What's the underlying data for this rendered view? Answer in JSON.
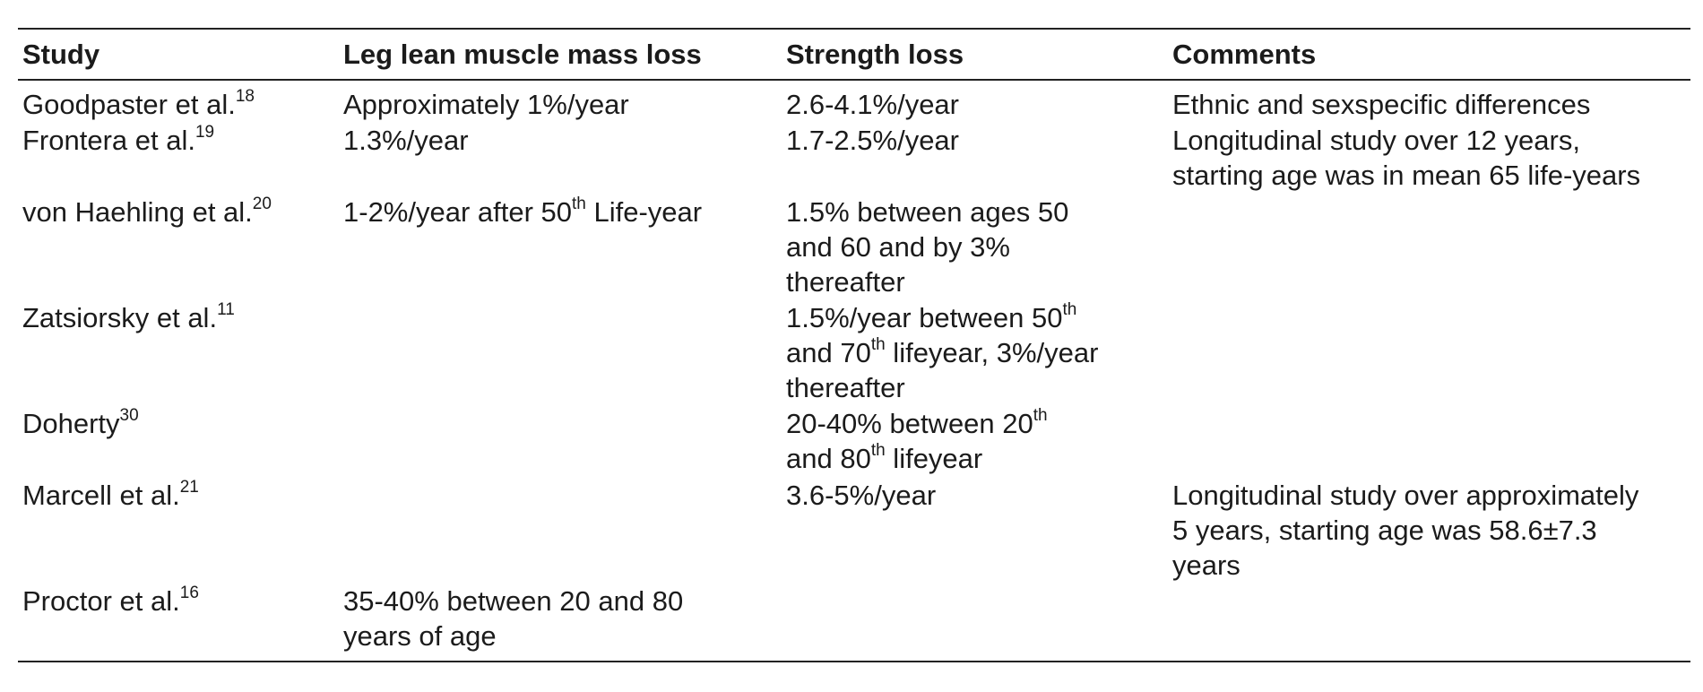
{
  "table": {
    "headers": {
      "study": "Study",
      "leg_lean": "Leg lean muscle mass loss",
      "strength": "Strength loss",
      "comments": "Comments"
    },
    "rows": [
      {
        "study": "Goodpaster et al.",
        "study_ref": "18",
        "leg_lean": "Approximately 1%/year",
        "strength": "2.6-4.1%/year",
        "comments": [
          "Ethnic and sexspecific differences"
        ]
      },
      {
        "study": "Frontera et al.",
        "study_ref": "19",
        "leg_lean": "1.3%/year",
        "strength": "1.7-2.5%/year",
        "comments": [
          "Longitudinal study over 12 years,",
          "starting age was in mean 65 life-years"
        ]
      },
      {
        "study": "von Haehling et al.",
        "study_ref": "20",
        "leg_lean_pre": "1-2%/year after 50",
        "leg_lean_sup": "th",
        "leg_lean_post": " Life-year",
        "strength": [
          "1.5% between ages 50",
          "and 60 and by 3%",
          "thereafter"
        ]
      },
      {
        "study": "Zatsiorsky et al.",
        "study_ref": "11",
        "strength_l1_pre": "1.5%/year between 50",
        "strength_l1_sup": "th",
        "strength_l2_pre": "and 70",
        "strength_l2_sup": "th",
        "strength_l2_post": " lifeyear, 3%/year",
        "strength_l3": "thereafter"
      },
      {
        "study": "Doherty",
        "study_ref": "30",
        "strength_l1_pre": "20-40% between 20",
        "strength_l1_sup": "th",
        "strength_l2_pre": "and 80",
        "strength_l2_sup": "th",
        "strength_l2_post": " lifeyear"
      },
      {
        "study": "Marcell et al.",
        "study_ref": "21",
        "strength": "3.6-5%/year",
        "comments": [
          "Longitudinal study over approximately",
          "5 years, starting age was 58.6±7.3",
          "years"
        ]
      },
      {
        "study": "Proctor et al.",
        "study_ref": "16",
        "leg_lean": [
          "35-40% between 20 and 80",
          "years of age"
        ]
      }
    ]
  }
}
